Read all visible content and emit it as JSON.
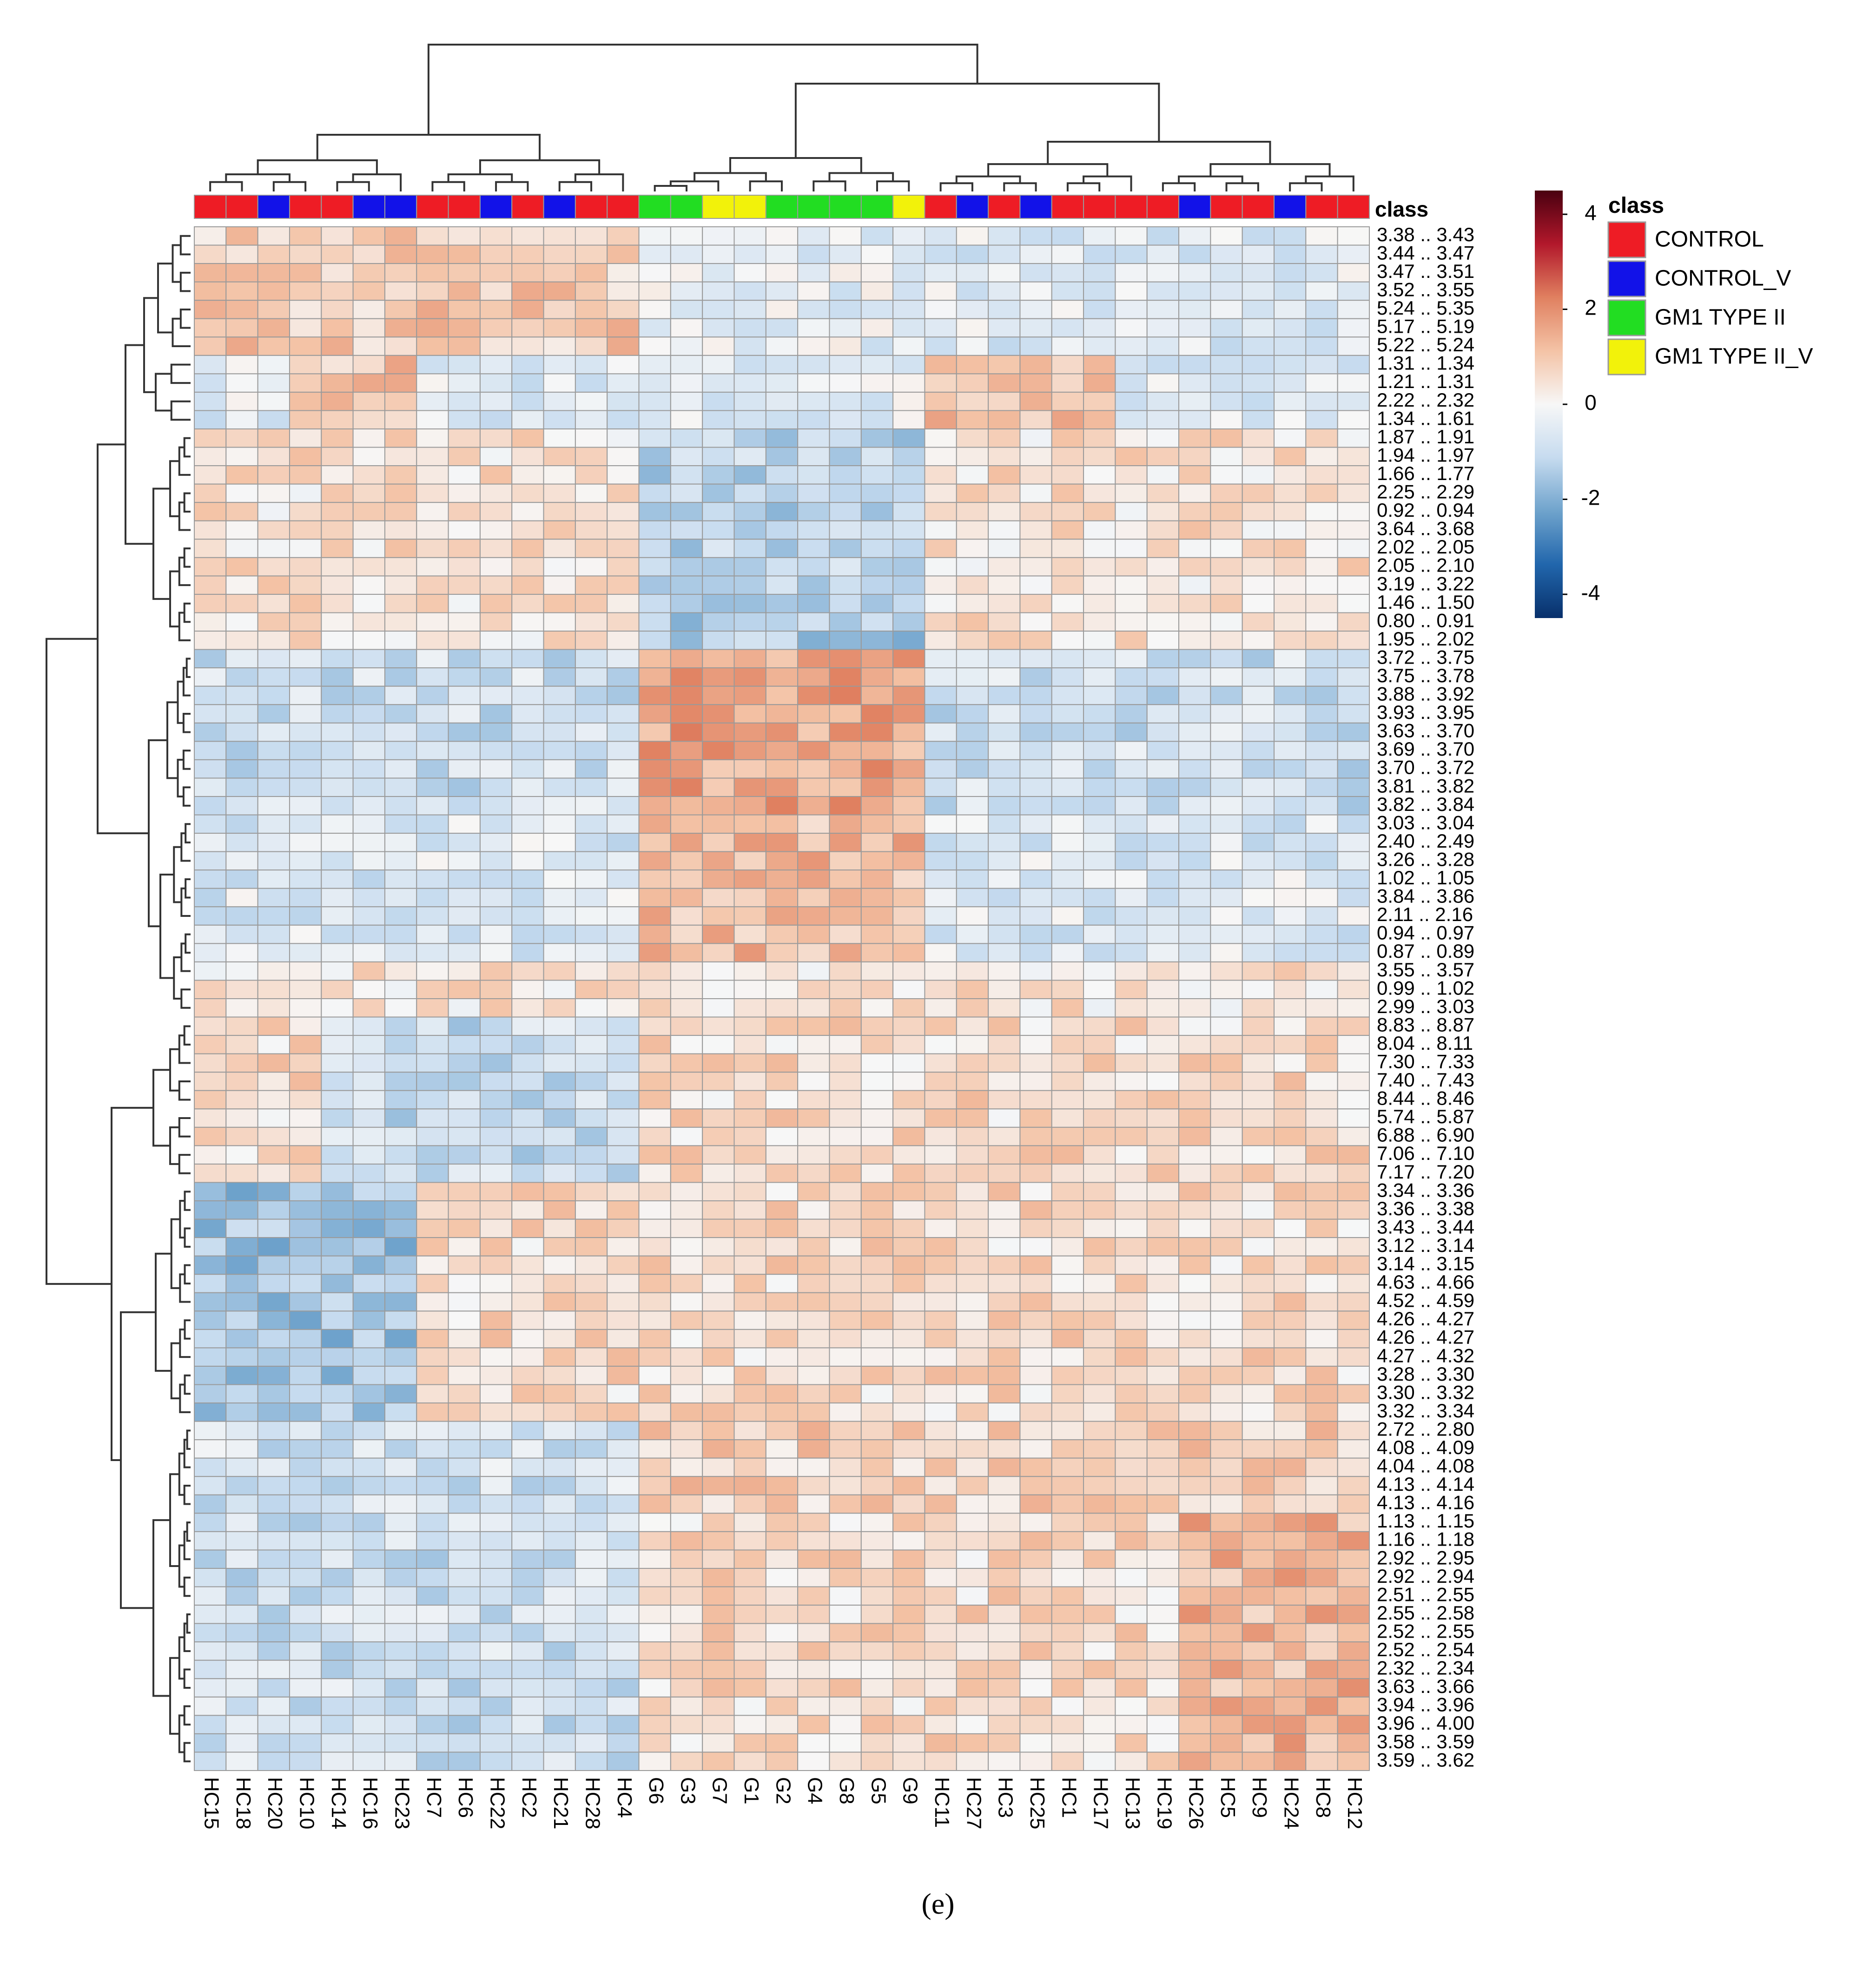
{
  "figure": {
    "caption": "(e)"
  },
  "chart_data": {
    "type": "heatmap",
    "title": "",
    "annotation_title": "class",
    "columns": [
      "HC15",
      "HC18",
      "HC20",
      "HC10",
      "HC14",
      "HC16",
      "HC23",
      "HC7",
      "HC6",
      "HC22",
      "HC2",
      "HC21",
      "HC28",
      "HC4",
      "G6",
      "G3",
      "G7",
      "G1",
      "G2",
      "G4",
      "G8",
      "G5",
      "G9",
      "HC11",
      "HC27",
      "HC3",
      "HC25",
      "HC1",
      "HC17",
      "HC13",
      "HC19",
      "HC26",
      "HC5",
      "HC9",
      "HC24",
      "HC8",
      "HC12"
    ],
    "column_classes": [
      "CONTROL",
      "CONTROL",
      "CONTROL_V",
      "CONTROL",
      "CONTROL",
      "CONTROL_V",
      "CONTROL_V",
      "CONTROL",
      "CONTROL",
      "CONTROL_V",
      "CONTROL",
      "CONTROL_V",
      "CONTROL",
      "CONTROL",
      "GM1 TYPE II",
      "GM1 TYPE II",
      "GM1 TYPE II_V",
      "GM1 TYPE II_V",
      "GM1 TYPE II",
      "GM1 TYPE II",
      "GM1 TYPE II",
      "GM1 TYPE II",
      "GM1 TYPE II_V",
      "CONTROL",
      "CONTROL_V",
      "CONTROL",
      "CONTROL_V",
      "CONTROL",
      "CONTROL",
      "CONTROL",
      "CONTROL",
      "CONTROL_V",
      "CONTROL",
      "CONTROL",
      "CONTROL_V",
      "CONTROL",
      "CONTROL"
    ],
    "legend": {
      "title": "class",
      "entries": [
        {
          "label": "CONTROL",
          "color": "#ee1c25"
        },
        {
          "label": "CONTROL_V",
          "color": "#1212e8"
        },
        {
          "label": "GM1 TYPE II",
          "color": "#22dd22"
        },
        {
          "label": "GM1 TYPE II_V",
          "color": "#f2f20a"
        }
      ]
    },
    "color_scale": {
      "min": -4.5,
      "max": 4.5,
      "ticks": [
        4,
        2,
        0,
        -2,
        -4
      ],
      "tick_labels": [
        "4",
        "2",
        "0",
        "-2",
        "-4"
      ],
      "stops": [
        "#08306b",
        "#2166ac",
        "#6fa3cc",
        "#c6dbef",
        "#f7f7f7",
        "#f4c3a6",
        "#e08060",
        "#b2182b",
        "#4a0010"
      ]
    },
    "row_labels": [
      "3.38 .. 3.43",
      "3.44 .. 3.47",
      "3.47 .. 3.51",
      "3.52 .. 3.55",
      "5.24 .. 5.35",
      "5.17 .. 5.19",
      "5.22 .. 5.24",
      "1.31 .. 1.34",
      "1.21 .. 1.31",
      "2.22 .. 2.32",
      "1.34 .. 1.61",
      "1.87 .. 1.91",
      "1.94 .. 1.97",
      "1.66 .. 1.77",
      "2.25 .. 2.29",
      "0.92 .. 0.94",
      "3.64 .. 3.68",
      "2.02 .. 2.05",
      "2.05 .. 2.10",
      "3.19 .. 3.22",
      "1.46 .. 1.50",
      "0.80 .. 0.91",
      "1.95 .. 2.02",
      "3.72 .. 3.75",
      "3.75 .. 3.78",
      "3.88 .. 3.92",
      "3.93 .. 3.95",
      "3.63 .. 3.70",
      "3.69 .. 3.70",
      "3.70 .. 3.72",
      "3.81 .. 3.82",
      "3.82 .. 3.84",
      "3.03 .. 3.04",
      "2.40 .. 2.49",
      "3.26 .. 3.28",
      "1.02 .. 1.05",
      "3.84 .. 3.86",
      "2.11 .. 2.16",
      "0.94 .. 0.97",
      "0.87 .. 0.89",
      "3.55 .. 3.57",
      "0.99 .. 1.02",
      "2.99 .. 3.03",
      "8.83 .. 8.87",
      "8.04 .. 8.11",
      "7.30 .. 7.33",
      "7.40 .. 7.43",
      "8.44 .. 8.46",
      "5.74 .. 5.87",
      "6.88 .. 6.90",
      "7.06 .. 7.10",
      "7.17 .. 7.20",
      "3.34 .. 3.36",
      "3.36 .. 3.38",
      "3.43 .. 3.44",
      "3.12 .. 3.14",
      "3.14 .. 3.15",
      "4.63 .. 4.66",
      "4.52 .. 4.59",
      "4.26 .. 4.27",
      "4.26 .. 4.27",
      "4.27 .. 4.32",
      "3.28 .. 3.30",
      "3.30 .. 3.32",
      "3.32 .. 3.34",
      "2.72 .. 2.80",
      "4.08 .. 4.09",
      "4.04 .. 4.08",
      "4.13 .. 4.14",
      "4.13 .. 4.16",
      "1.13 .. 1.15",
      "1.16 .. 1.18",
      "2.92 .. 2.95",
      "2.92 .. 2.94",
      "2.51 .. 2.55",
      "2.55 .. 2.58",
      "2.52 .. 2.55",
      "2.52 .. 2.54",
      "2.32 .. 2.34",
      "3.63 .. 3.66",
      "3.94 .. 3.96",
      "3.96 .. 4.00",
      "3.58 .. 3.59",
      "3.59 .. 3.62"
    ],
    "xlabel": "",
    "ylabel": "",
    "legend_position": "top-right",
    "dendrogram": "rows and columns (hierarchical clustering)"
  }
}
